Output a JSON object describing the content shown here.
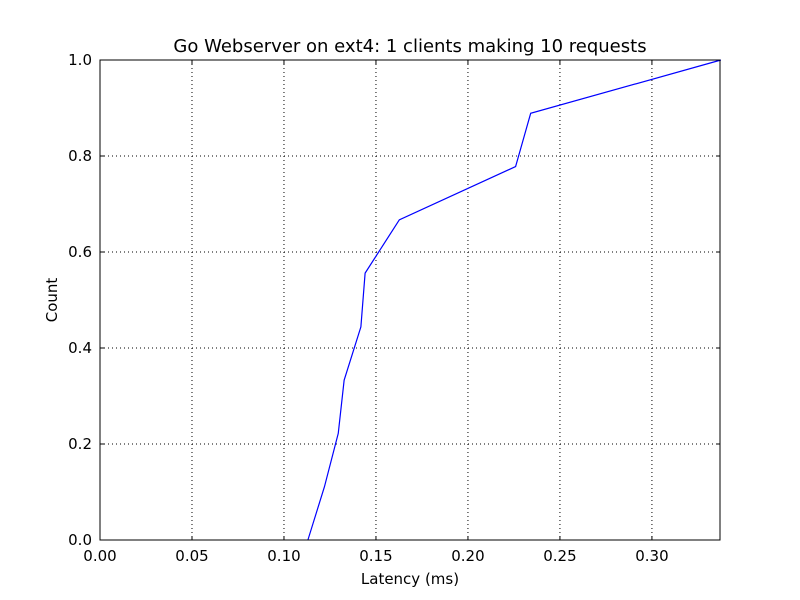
{
  "chart_data": {
    "type": "line",
    "title": "Go Webserver on ext4: 1 clients making 10 requests",
    "xlabel": "Latency (ms)",
    "ylabel": "Count",
    "xlim": [
      0.0,
      0.337
    ],
    "ylim": [
      0.0,
      1.0
    ],
    "grid": true,
    "x_ticks": [
      0.0,
      0.05,
      0.1,
      0.15,
      0.2,
      0.25,
      0.3
    ],
    "x_tick_labels": [
      "0.00",
      "0.05",
      "0.10",
      "0.15",
      "0.20",
      "0.25",
      "0.30"
    ],
    "y_ticks": [
      0.0,
      0.2,
      0.4,
      0.6,
      0.8,
      1.0
    ],
    "y_tick_labels": [
      "0.0",
      "0.2",
      "0.4",
      "0.6",
      "0.8",
      "1.0"
    ],
    "series": [
      {
        "color": "#0000ff",
        "x": [
          0.113,
          0.122,
          0.1295,
          0.1327,
          0.1418,
          0.1441,
          0.1627,
          0.2259,
          0.2341,
          0.3375
        ],
        "y": [
          0.0,
          0.111,
          0.222,
          0.333,
          0.444,
          0.556,
          0.667,
          0.778,
          0.889,
          1.0
        ]
      }
    ]
  }
}
